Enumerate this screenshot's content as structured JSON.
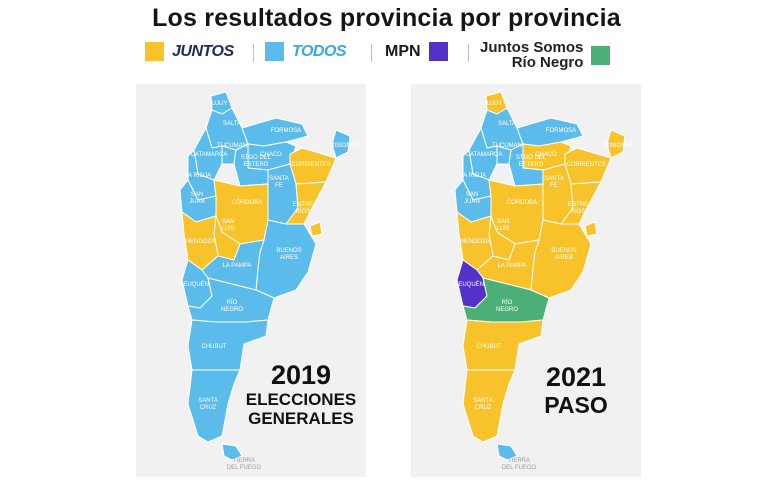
{
  "title": "Los resultados provincia por provincia",
  "legend": {
    "juntos": {
      "label": "JUNTOS",
      "color": "#f8c22a"
    },
    "todos": {
      "label": "TODOS",
      "color": "#5bbcec"
    },
    "mpn": {
      "label": "MPN",
      "color": "#5232c8"
    },
    "jsrn": {
      "label_line1": "Juntos Somos",
      "label_line2": "Río Negro",
      "color": "#4caf78"
    }
  },
  "maps": [
    {
      "year": "2019",
      "subtitle_line1": "ELECCIONES",
      "subtitle_line2": "GENERALES",
      "results": {
        "jujuy": "todos",
        "salta": "todos",
        "formosa": "todos",
        "chaco": "todos",
        "misiones": "todos",
        "corrientes": "juntos",
        "tucuman": "todos",
        "catamarca": "todos",
        "stgo_del_estero": "todos",
        "la_rioja": "todos",
        "santa_fe": "todos",
        "san_juan": "todos",
        "cordoba": "juntos",
        "entre_rios": "juntos",
        "san_luis": "juntos",
        "mendoza": "juntos",
        "buenos_aires": "todos",
        "caba": "juntos",
        "la_pampa": "todos",
        "neuquen": "todos",
        "rio_negro": "todos",
        "chubut": "todos",
        "santa_cruz": "todos",
        "tierra_del_fuego": "todos"
      }
    },
    {
      "year": "2021",
      "subtitle_line1": "PASO",
      "subtitle_line2": "",
      "results": {
        "jujuy": "juntos",
        "salta": "todos",
        "formosa": "todos",
        "chaco": "juntos",
        "misiones": "juntos",
        "corrientes": "juntos",
        "tucuman": "todos",
        "catamarca": "todos",
        "stgo_del_estero": "todos",
        "la_rioja": "todos",
        "santa_fe": "juntos",
        "san_juan": "todos",
        "cordoba": "juntos",
        "entre_rios": "juntos",
        "san_luis": "juntos",
        "mendoza": "juntos",
        "buenos_aires": "juntos",
        "caba": "juntos",
        "la_pampa": "juntos",
        "neuquen": "mpn",
        "rio_negro": "jsrn",
        "chubut": "juntos",
        "santa_cruz": "juntos",
        "tierra_del_fuego": "todos"
      }
    }
  ],
  "province_labels": {
    "jujuy": "JUJUY",
    "salta": "SALTA",
    "formosa": "FORMOSA",
    "chaco": "CHACO",
    "misiones": "MISIONES",
    "corrientes": "CORRIENTES",
    "tucuman": "TUCUMAN",
    "catamarca": "CATAMARCA",
    "stgo_del_estero_1": "STGO DEL",
    "stgo_del_estero_2": "ESTERO",
    "la_rioja": "LA RIOJA",
    "santa_fe_1": "SANTA",
    "santa_fe_2": "FE",
    "san_juan_1": "SAN",
    "san_juan_2": "JUAN",
    "cordoba": "CÓRDOBA",
    "entre_rios_1": "ENTRE",
    "entre_rios_2": "RÍOS",
    "san_luis_1": "SAN",
    "san_luis_2": "LUIS",
    "mendoza": "MENDOZA",
    "buenos_aires_1": "BUENOS",
    "buenos_aires_2": "AIRES",
    "la_pampa": "LA PAMPA",
    "neuquen": "NEUQUÉN",
    "rio_negro_1": "RÍO",
    "rio_negro_2": "NEGRO",
    "chubut": "CHUBUT",
    "santa_cruz_1": "SANTA",
    "santa_cruz_2": "CRUZ",
    "tierra_del_fuego_1": "TIERRA",
    "tierra_del_fuego_2": "DEL FUEGO"
  }
}
